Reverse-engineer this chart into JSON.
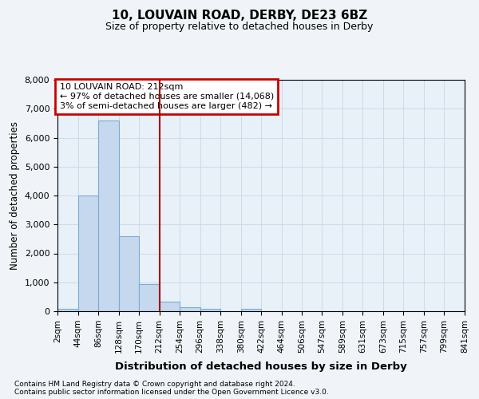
{
  "title1": "10, LOUVAIN ROAD, DERBY, DE23 6BZ",
  "title2": "Size of property relative to detached houses in Derby",
  "xlabel": "Distribution of detached houses by size in Derby",
  "ylabel": "Number of detached properties",
  "bin_edges": [
    2,
    44,
    86,
    128,
    170,
    212,
    254,
    296,
    338,
    380,
    422,
    464,
    506,
    547,
    589,
    631,
    673,
    715,
    757,
    799,
    841
  ],
  "bar_heights": [
    70,
    4000,
    6600,
    2600,
    950,
    330,
    130,
    80,
    0,
    80,
    0,
    0,
    0,
    0,
    0,
    0,
    0,
    0,
    0,
    0
  ],
  "bar_color": "#c5d8ee",
  "bar_edge_color": "#7aadcf",
  "vline_x": 212,
  "vline_color": "#aa0000",
  "annotation_lines": [
    "10 LOUVAIN ROAD: 212sqm",
    "← 97% of detached houses are smaller (14,068)",
    "3% of semi-detached houses are larger (482) →"
  ],
  "annotation_box_color": "#cc0000",
  "ylim": [
    0,
    8000
  ],
  "yticks": [
    0,
    1000,
    2000,
    3000,
    4000,
    5000,
    6000,
    7000,
    8000
  ],
  "grid_color": "#c8d8e8",
  "background_color": "#f0f4f8",
  "plot_bg_color": "#e8f0f8",
  "footer1": "Contains HM Land Registry data © Crown copyright and database right 2024.",
  "footer2": "Contains public sector information licensed under the Open Government Licence v3.0."
}
